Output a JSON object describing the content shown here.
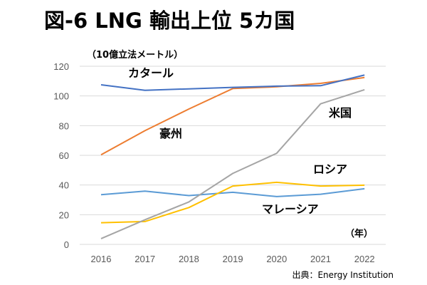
{
  "title": "図-6 LNG  輸出上位 5カ国",
  "source": "出典：Energy Institution",
  "chart_data": {
    "type": "line",
    "title": "図-6 LNG  輸出上位 5カ国",
    "ylabel": "（10億立法メートル）",
    "xlabel": "（年）",
    "x": [
      "2016",
      "2017",
      "2018",
      "2019",
      "2020",
      "2021",
      "2022"
    ],
    "ylim": [
      0,
      120
    ],
    "yticks": [
      0,
      20,
      40,
      60,
      80,
      100,
      120
    ],
    "grid": true,
    "series": [
      {
        "name": "カタール",
        "color": "#4472C4",
        "values": [
          107.5,
          103.8,
          104.8,
          105.8,
          106.6,
          106.9,
          114.1
        ]
      },
      {
        "name": "豪州",
        "color": "#ED7D31",
        "values": [
          60.4,
          76.6,
          91.2,
          105.0,
          106.2,
          108.5,
          112.4
        ]
      },
      {
        "name": "米国",
        "color": "#A5A5A5",
        "values": [
          3.9,
          16.6,
          28.6,
          47.8,
          61.4,
          94.7,
          104.2
        ]
      },
      {
        "name": "ロシア",
        "color": "#FFC000",
        "values": [
          14.6,
          15.4,
          24.8,
          39.3,
          41.8,
          39.3,
          39.9
        ]
      },
      {
        "name": "マレーシア",
        "color": "#5B9BD5",
        "values": [
          33.5,
          35.9,
          32.9,
          35.1,
          32.2,
          33.8,
          37.5
        ]
      }
    ],
    "annotations": [
      "カタール",
      "豪州",
      "米国",
      "ロシア",
      "マレーシア"
    ]
  }
}
